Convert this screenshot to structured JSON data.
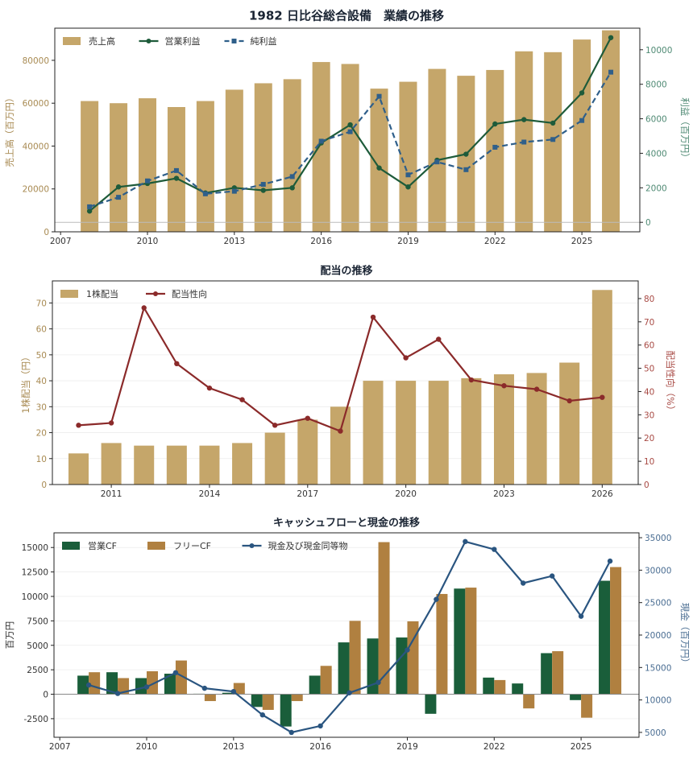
{
  "chart_data": [
    {
      "type": "bar+line",
      "title": "1982 日比谷総合設備　業績の推移",
      "ylabel": "売上高（百万円）",
      "y2label": "利益（百万円）",
      "xlim": [
        2006.8,
        2027.0
      ],
      "ylim": [
        0,
        95000
      ],
      "y2lim": [
        -550,
        11250
      ],
      "xticks": [
        "2007",
        "2010",
        "2013",
        "2016",
        "2019",
        "2022",
        "2025"
      ],
      "yticks": [
        "0",
        "20000",
        "40000",
        "60000",
        "80000"
      ],
      "y2ticks": [
        "0",
        "2000",
        "4000",
        "6000",
        "8000",
        "10000"
      ],
      "legend_position": "top-left",
      "grid": false,
      "years": [
        2008,
        2009,
        2010,
        2011,
        2012,
        2013,
        2014,
        2015,
        2016,
        2017,
        2018,
        2019,
        2020,
        2021,
        2022,
        2023,
        2024,
        2025,
        2026
      ],
      "legend": [
        "売上高",
        "営業利益",
        "純利益"
      ],
      "series": [
        {
          "name": "売上高",
          "kind": "bar",
          "axis": "left",
          "color": "#c5a66a",
          "values": [
            61000,
            60000,
            62300,
            58200,
            61000,
            66300,
            69300,
            71200,
            79200,
            78300,
            66800,
            70000,
            76000,
            72800,
            75500,
            84200,
            83800,
            89700,
            94000
          ]
        },
        {
          "name": "営業利益",
          "kind": "line",
          "axis": "right",
          "color": "#1e5b3a",
          "dashed": false,
          "marker": "circle",
          "values": [
            650,
            2050,
            2250,
            2550,
            1700,
            2000,
            1850,
            2000,
            4600,
            5650,
            3150,
            2050,
            3600,
            3950,
            5700,
            5950,
            5750,
            7500,
            10700
          ]
        },
        {
          "name": "純利益",
          "kind": "line",
          "axis": "right",
          "color": "#2f5f8a",
          "dashed": true,
          "marker": "square",
          "values": [
            900,
            1450,
            2400,
            3000,
            1650,
            1800,
            2200,
            2650,
            4700,
            5250,
            7300,
            2750,
            3500,
            3050,
            4350,
            4650,
            4800,
            5900,
            8700
          ]
        }
      ],
      "reference_lines": [
        {
          "axis": "right",
          "value": 0
        }
      ]
    },
    {
      "type": "bar+line",
      "title": "配当の推移",
      "ylabel": "1株配当（円）",
      "y2label": "配当性向（%）",
      "xlim": [
        2009.2,
        2027.1
      ],
      "ylim": [
        0,
        78.5
      ],
      "y2lim": [
        0,
        87.6
      ],
      "xticks": [
        "2011",
        "2014",
        "2017",
        "2020",
        "2023",
        "2026"
      ],
      "yticks": [
        "0",
        "10",
        "20",
        "30",
        "40",
        "50",
        "60",
        "70"
      ],
      "y2ticks": [
        "0",
        "10",
        "20",
        "30",
        "40",
        "50",
        "60",
        "70",
        "80"
      ],
      "legend_position": "top-left",
      "grid": true,
      "years": [
        2010,
        2011,
        2012,
        2013,
        2014,
        2015,
        2016,
        2017,
        2018,
        2019,
        2020,
        2021,
        2022,
        2023,
        2024,
        2025,
        2026
      ],
      "legend": [
        "1株配当",
        "配当性向"
      ],
      "series": [
        {
          "name": "1株配当",
          "kind": "bar",
          "axis": "left",
          "color": "#c5a66a",
          "values": [
            12,
            16,
            15,
            15,
            15,
            16,
            20,
            25,
            30,
            40,
            40,
            40,
            41,
            42.5,
            43,
            47,
            75
          ]
        },
        {
          "name": "配当性向",
          "kind": "line",
          "axis": "right",
          "color": "#8b2a2a",
          "dashed": false,
          "marker": "circle",
          "values": [
            25.5,
            26.5,
            76,
            52,
            41.5,
            36.5,
            25.5,
            28.5,
            23,
            72,
            54.5,
            62.5,
            45,
            42.5,
            41,
            36,
            37.5
          ]
        }
      ]
    },
    {
      "type": "grouped-bar+line",
      "title": "キャッシュフローと現金の推移",
      "ylabel": "百万円",
      "y2label": "現金（百万円）",
      "xlim": [
        2006.8,
        2027.0
      ],
      "ylim": [
        -4400,
        16500
      ],
      "y2lim": [
        4250,
        35750
      ],
      "xticks": [
        "2007",
        "2010",
        "2013",
        "2016",
        "2019",
        "2022",
        "2025"
      ],
      "yticks": [
        "-2500",
        "0",
        "2500",
        "5000",
        "7500",
        "10000",
        "12500",
        "15000"
      ],
      "y2ticks": [
        "5000",
        "10000",
        "15000",
        "20000",
        "25000",
        "30000",
        "35000"
      ],
      "legend_position": "top-left",
      "grid": true,
      "years": [
        2008,
        2009,
        2010,
        2011,
        2012,
        2013,
        2014,
        2015,
        2016,
        2017,
        2018,
        2019,
        2020,
        2021,
        2022,
        2023,
        2024,
        2025,
        2026
      ],
      "legend": [
        "営業CF",
        "フリーCF",
        "現金及び現金同等物"
      ],
      "series": [
        {
          "name": "営業CF",
          "kind": "bar",
          "axis": "left",
          "color": "#1a5e3a",
          "values": [
            1900,
            2250,
            1650,
            2100,
            50,
            150,
            -1300,
            -3300,
            1900,
            5300,
            5700,
            5800,
            -2000,
            10800,
            1700,
            1100,
            4200,
            -600,
            11600
          ]
        },
        {
          "name": "フリーCF",
          "kind": "bar",
          "axis": "left",
          "color": "#b08040",
          "values": [
            2250,
            1650,
            2350,
            3450,
            -700,
            1150,
            -1600,
            -700,
            2900,
            7500,
            15550,
            7450,
            10250,
            10900,
            1450,
            -1450,
            4400,
            -2400,
            13000
          ]
        },
        {
          "name": "現金及び現金同等物",
          "kind": "line",
          "axis": "right",
          "color": "#2a5580",
          "dashed": false,
          "marker": "circle",
          "values": [
            12300,
            11000,
            12000,
            14200,
            11800,
            11300,
            7700,
            5000,
            6000,
            11100,
            12700,
            17700,
            25500,
            34400,
            33200,
            28000,
            29100,
            22900,
            31400
          ]
        }
      ],
      "reference_lines": [
        {
          "axis": "left",
          "value": 0
        }
      ]
    }
  ]
}
